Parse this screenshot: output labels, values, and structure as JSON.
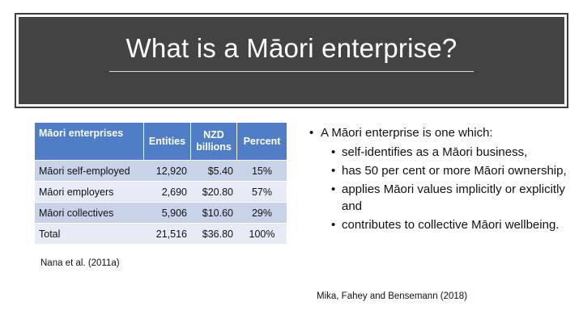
{
  "slide": {
    "title": "What is a Māori enterprise?"
  },
  "table": {
    "headers": [
      "Māori enterprises",
      "Entities",
      "NZD billions",
      "Percent"
    ],
    "rows": [
      [
        "Māori self-employed",
        "12,920",
        "$5.40",
        "15%"
      ],
      [
        "Māori employers",
        "2,690",
        "$20.80",
        "57%"
      ],
      [
        "Māori collectives",
        "5,906",
        "$10.60",
        "29%"
      ],
      [
        "Total",
        "21,516",
        "$36.80",
        "100%"
      ]
    ],
    "colors": {
      "header": "#4f7ec6",
      "row_odd": "#c8d2e9",
      "row_even": "#e7ebf5"
    }
  },
  "citation_left": "Nana et al. (2011a)",
  "bullets": {
    "main": "A Māori enterprise is one which:",
    "items": [
      "self-identifies as a Māori business,",
      "has 50 per cent or more Māori ownership,",
      "applies Māori values implicitly or explicitly and",
      "contributes to collective Māori wellbeing."
    ]
  },
  "citation_right": "Mika, Fahey and Bensemann (2018)",
  "colors": {
    "title_band": "#434343",
    "title_text": "#ffffff"
  }
}
